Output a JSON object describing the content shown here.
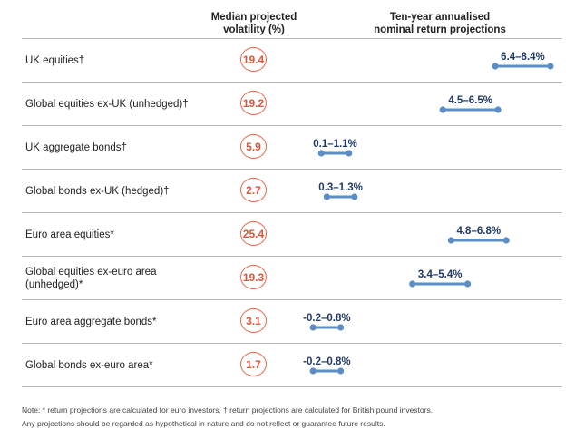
{
  "headers": {
    "volatility": [
      "Median projected",
      "volatility (%)"
    ],
    "returns": [
      "Ten-year annualised",
      "nominal return projections"
    ]
  },
  "colors": {
    "circle": "#e0694a",
    "bar": "#5b8ec4",
    "range_text": "#1f3864"
  },
  "chart_data": {
    "type": "range",
    "xlim": [
      -0.6,
      8.6
    ],
    "rows": [
      {
        "label": "UK equities†",
        "volatility": "19.4",
        "low": 6.4,
        "high": 8.4,
        "range_label": "6.4–8.4%"
      },
      {
        "label": "Global equities ex-UK (unhedged)†",
        "volatility": "19.2",
        "low": 4.5,
        "high": 6.5,
        "range_label": "4.5–6.5%"
      },
      {
        "label": "UK aggregate bonds†",
        "volatility": "5.9",
        "low": 0.1,
        "high": 1.1,
        "range_label": "0.1–1.1%"
      },
      {
        "label": "Global bonds ex-UK (hedged)†",
        "volatility": "2.7",
        "low": 0.3,
        "high": 1.3,
        "range_label": "0.3–1.3%"
      },
      {
        "label": "Euro area equities*",
        "volatility": "25.4",
        "low": 4.8,
        "high": 6.8,
        "range_label": "4.8–6.8%"
      },
      {
        "label": "Global equities ex-euro area (unhedged)*",
        "volatility": "19.3",
        "low": 3.4,
        "high": 5.4,
        "range_label": "3.4–5.4%"
      },
      {
        "label": "Euro area aggregate bonds*",
        "volatility": "3.1",
        "low": -0.2,
        "high": 0.8,
        "range_label": "-0.2–0.8%"
      },
      {
        "label": "Global bonds ex-euro area*",
        "volatility": "1.7",
        "low": -0.2,
        "high": 0.8,
        "range_label": "-0.2–0.8%"
      }
    ]
  },
  "notes": {
    "line1": "Note: * return projections are calculated for euro investors. † return projections are calculated for British pound investors.",
    "line2": "Any projections should be regarded as hypothetical in nature and do not reflect or guarantee future results."
  }
}
